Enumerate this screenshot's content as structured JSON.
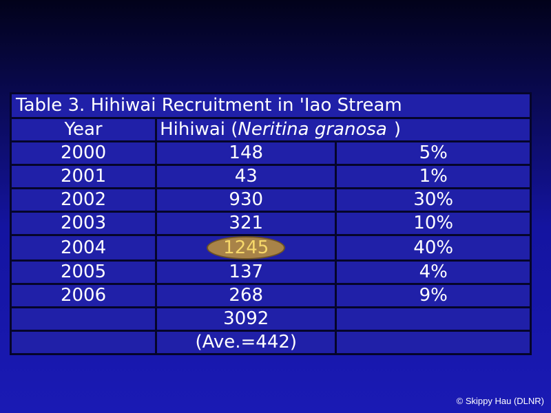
{
  "table": {
    "title": "Table 3.  Hihiwai Recruitment in 'Iao Stream",
    "header": {
      "year": "Year",
      "species_prefix": "Hihiwai (",
      "species_name": "Neritina granosa",
      "species_suffix": ")"
    },
    "rows": [
      [
        "2000",
        "148",
        "5%"
      ],
      [
        "2001",
        "43",
        "1%"
      ],
      [
        "2002",
        "930",
        "30%"
      ],
      [
        "2003",
        "321",
        "10%"
      ],
      [
        "2004",
        "1245",
        "40%"
      ],
      [
        "2005",
        "137",
        "4%"
      ],
      [
        "2006",
        "268",
        "9%"
      ]
    ],
    "total": "3092",
    "average": "(Ave.=442)"
  },
  "footer": {
    "credit": "© Skippy Hau (DLNR)"
  }
}
